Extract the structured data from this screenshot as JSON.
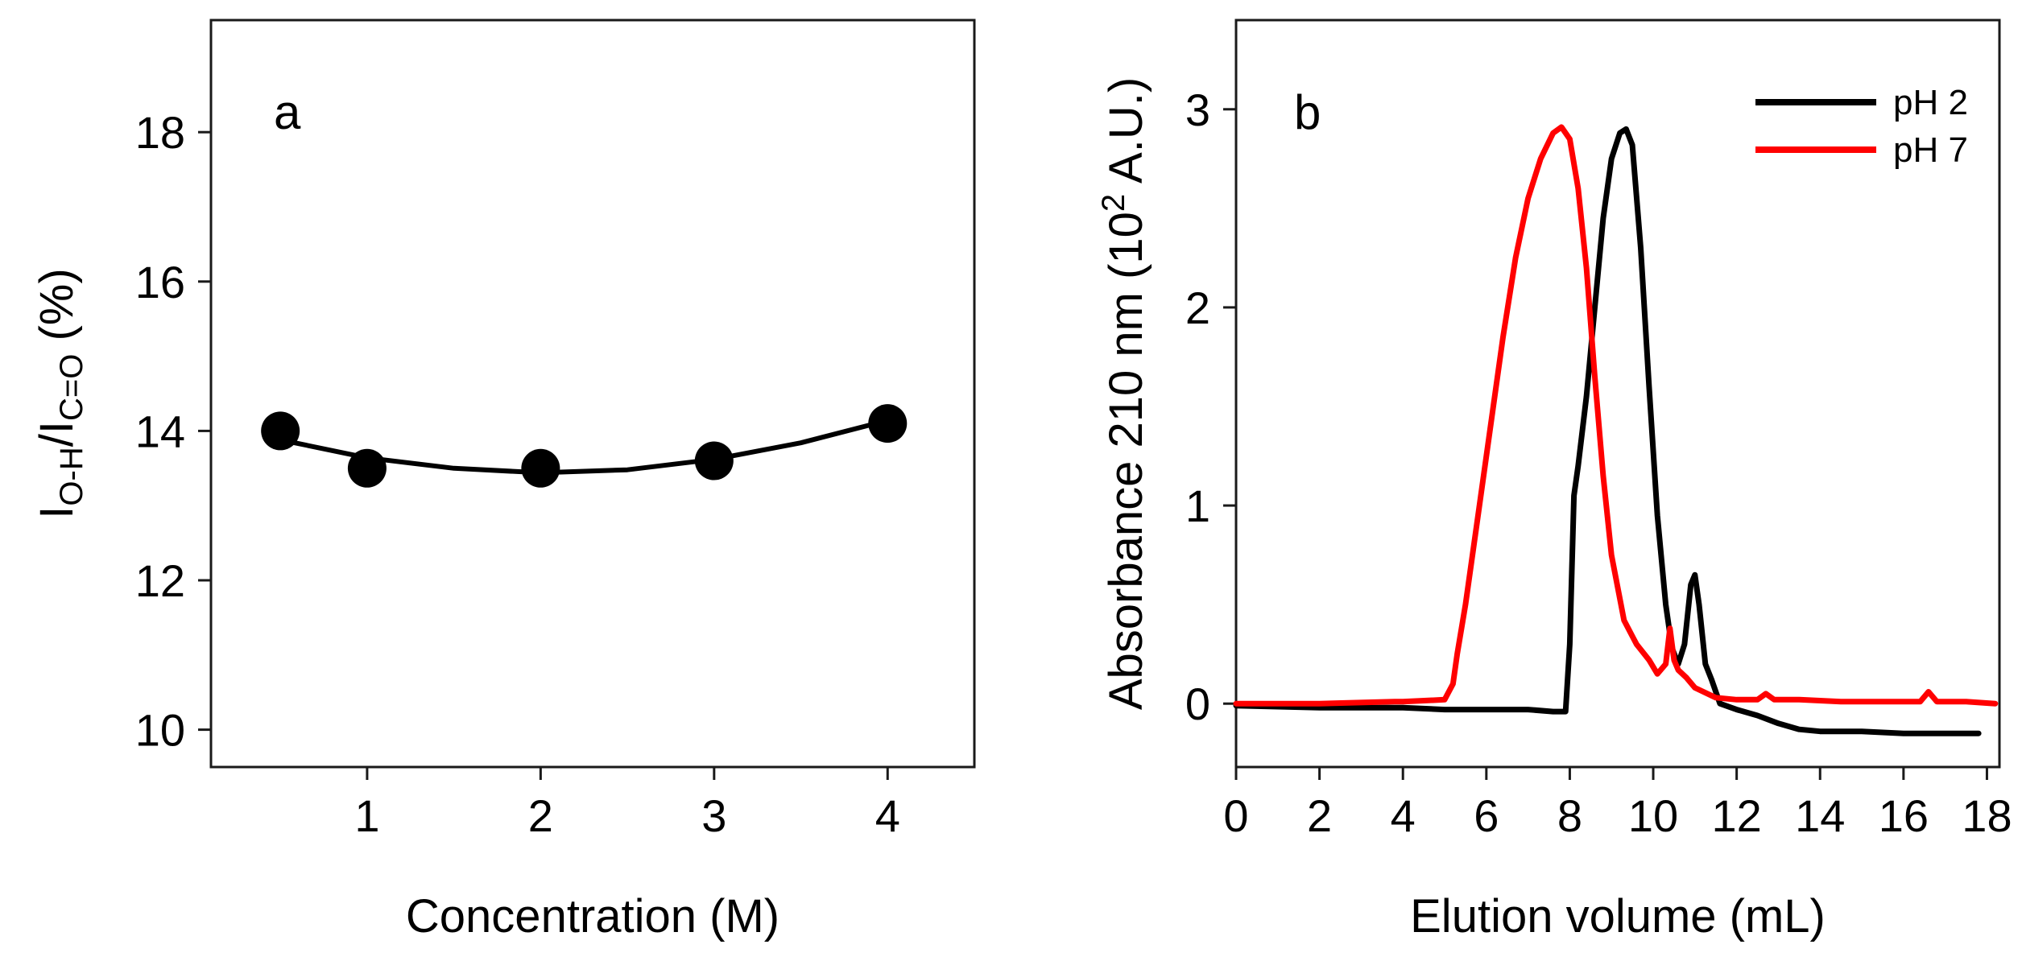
{
  "chart_data": [
    {
      "panel": "a",
      "type": "scatter",
      "panel_label": "a",
      "xlabel": "Concentration (M)",
      "ylabel_parts": {
        "i1": "I",
        "sub1": "O-H",
        "slash": "/",
        "i2": "I",
        "sub2": "C=O",
        "unit": " (%)"
      },
      "xlim": [
        0.1,
        4.5
      ],
      "ylim": [
        9.5,
        19.5
      ],
      "xticks": [
        1,
        2,
        3,
        4
      ],
      "yticks": [
        10,
        12,
        14,
        16,
        18
      ],
      "xtick_labels": [
        "1",
        "2",
        "3",
        "4"
      ],
      "ytick_labels": [
        "10",
        "12",
        "14",
        "16",
        "18"
      ],
      "points": [
        {
          "x": 0.5,
          "y": 14.0
        },
        {
          "x": 1.0,
          "y": 13.5
        },
        {
          "x": 2.0,
          "y": 13.5
        },
        {
          "x": 3.0,
          "y": 13.6
        },
        {
          "x": 4.0,
          "y": 14.1
        }
      ],
      "fit_curve": {
        "x": [
          0.5,
          1.0,
          1.5,
          2.0,
          2.5,
          3.0,
          3.5,
          4.0
        ],
        "y": [
          13.88,
          13.64,
          13.5,
          13.44,
          13.48,
          13.62,
          13.84,
          14.14
        ]
      }
    },
    {
      "panel": "b",
      "type": "line",
      "panel_label": "b",
      "xlabel": "Elution volume (mL)",
      "ylabel_parts": {
        "main": "Absorbance 210 nm (10",
        "sup": "2",
        "end": " A.U.)"
      },
      "xlim": [
        0,
        18.3
      ],
      "ylim": [
        -0.32,
        3.45
      ],
      "xticks": [
        0,
        2,
        4,
        6,
        8,
        10,
        12,
        14,
        16,
        18
      ],
      "yticks": [
        0,
        1,
        2,
        3
      ],
      "xtick_labels": [
        "0",
        "2",
        "4",
        "6",
        "8",
        "10",
        "12",
        "14",
        "16",
        "18"
      ],
      "ytick_labels": [
        "0",
        "1",
        "2",
        "3"
      ],
      "legend": {
        "position": "top-right"
      },
      "series": [
        {
          "name": "pH 2",
          "color": "#000000",
          "x": [
            0,
            2,
            3.8,
            4,
            5,
            6,
            7,
            7.6,
            7.9,
            8.0,
            8.1,
            8.2,
            8.4,
            8.6,
            8.8,
            9.0,
            9.2,
            9.35,
            9.5,
            9.7,
            9.9,
            10.1,
            10.3,
            10.45,
            10.6,
            10.75,
            10.9,
            11.0,
            11.1,
            11.25,
            11.4,
            11.6,
            12.0,
            12.5,
            13.0,
            13.5,
            14.0,
            15.0,
            16.0,
            17.0,
            17.8
          ],
          "y": [
            -0.01,
            -0.02,
            -0.02,
            -0.02,
            -0.03,
            -0.03,
            -0.03,
            -0.04,
            -0.04,
            0.3,
            1.05,
            1.2,
            1.55,
            2.0,
            2.45,
            2.75,
            2.88,
            2.9,
            2.82,
            2.3,
            1.6,
            0.95,
            0.5,
            0.28,
            0.2,
            0.3,
            0.6,
            0.65,
            0.5,
            0.2,
            0.12,
            0.0,
            -0.03,
            -0.06,
            -0.1,
            -0.13,
            -0.14,
            -0.14,
            -0.15,
            -0.15,
            -0.15
          ]
        },
        {
          "name": "pH 7",
          "color": "#ff0000",
          "x": [
            0,
            2,
            3.8,
            4,
            5,
            5.2,
            5.3,
            5.5,
            5.8,
            6.1,
            6.4,
            6.7,
            7.0,
            7.3,
            7.6,
            7.8,
            8.0,
            8.2,
            8.4,
            8.6,
            8.8,
            9.0,
            9.3,
            9.6,
            9.9,
            10.1,
            10.3,
            10.4,
            10.5,
            10.6,
            10.8,
            11.0,
            11.5,
            12.0,
            12.5,
            12.7,
            12.9,
            13.5,
            14.5,
            15.5,
            16.4,
            16.6,
            16.8,
            17.5,
            18.2
          ],
          "y": [
            0.0,
            0.0,
            0.01,
            0.01,
            0.02,
            0.1,
            0.25,
            0.5,
            0.95,
            1.4,
            1.85,
            2.25,
            2.55,
            2.75,
            2.88,
            2.91,
            2.85,
            2.6,
            2.2,
            1.65,
            1.15,
            0.75,
            0.42,
            0.3,
            0.22,
            0.15,
            0.2,
            0.38,
            0.22,
            0.17,
            0.13,
            0.08,
            0.03,
            0.02,
            0.02,
            0.05,
            0.02,
            0.02,
            0.01,
            0.01,
            0.01,
            0.06,
            0.01,
            0.01,
            0.0
          ]
        }
      ]
    }
  ]
}
